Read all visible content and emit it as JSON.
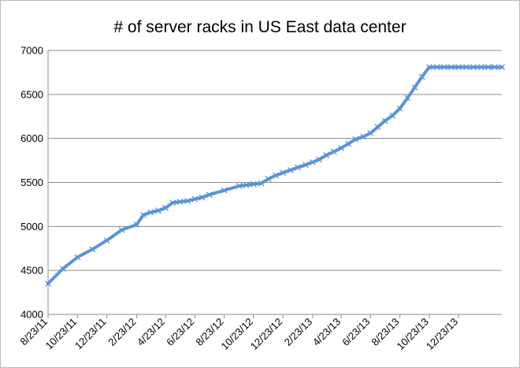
{
  "chart_data": {
    "type": "line",
    "title": "# of server racks in US East data center",
    "xlabel": "",
    "ylabel": "",
    "ylim": [
      4000,
      7000
    ],
    "yticks": [
      4000,
      4500,
      5000,
      5500,
      6000,
      6500,
      7000
    ],
    "xlim": [
      "8/23/11",
      "3/23/14"
    ],
    "xticks": [
      "8/23/11",
      "10/23/11",
      "12/23/11",
      "2/23/12",
      "4/23/12",
      "6/23/12",
      "8/23/12",
      "10/23/12",
      "12/23/12",
      "2/23/13",
      "4/23/13",
      "6/23/13",
      "8/23/13",
      "10/23/13",
      "12/23/13"
    ],
    "grid": "horizontal",
    "legend": "none",
    "marker": "x",
    "line_color": "#5b93d6",
    "series": [
      {
        "x": [
          "8/23/11",
          "9/23/11",
          "10/23/11",
          "11/23/11",
          "12/23/11",
          "1/23/12",
          "2/23/12",
          "3/8/12",
          "3/23/12",
          "4/8/12",
          "4/23/12",
          "5/8/12",
          "5/23/12",
          "6/8/12",
          "6/23/12",
          "7/8/12",
          "7/23/12",
          "8/23/12",
          "9/23/12",
          "10/8/12",
          "10/23/12",
          "11/8/12",
          "11/23/12",
          "12/8/12",
          "12/23/12",
          "1/8/13",
          "1/23/13",
          "2/8/13",
          "2/23/13",
          "3/8/13",
          "3/23/13",
          "4/8/13",
          "4/23/13",
          "5/8/13",
          "5/23/13",
          "6/8/13",
          "6/23/13",
          "7/8/13",
          "7/23/13",
          "8/8/13",
          "8/23/13",
          "9/8/13",
          "9/23/13",
          "10/8/13",
          "10/23/13",
          "11/8/13",
          "11/23/13",
          "12/8/13",
          "12/23/13",
          "1/8/14",
          "1/23/14",
          "2/8/14",
          "2/23/14",
          "3/8/14",
          "3/23/14"
        ],
        "values": [
          4350,
          4520,
          4650,
          4740,
          4840,
          4960,
          5020,
          5130,
          5160,
          5180,
          5210,
          5270,
          5280,
          5290,
          5310,
          5330,
          5360,
          5410,
          5460,
          5470,
          5480,
          5490,
          5540,
          5580,
          5610,
          5640,
          5670,
          5700,
          5730,
          5760,
          5810,
          5850,
          5890,
          5940,
          5990,
          6020,
          6060,
          6130,
          6200,
          6260,
          6340,
          6460,
          6580,
          6700,
          6810,
          6810,
          6810,
          6810,
          6810,
          6810,
          6810,
          6810,
          6810,
          6810,
          6810
        ]
      }
    ]
  }
}
